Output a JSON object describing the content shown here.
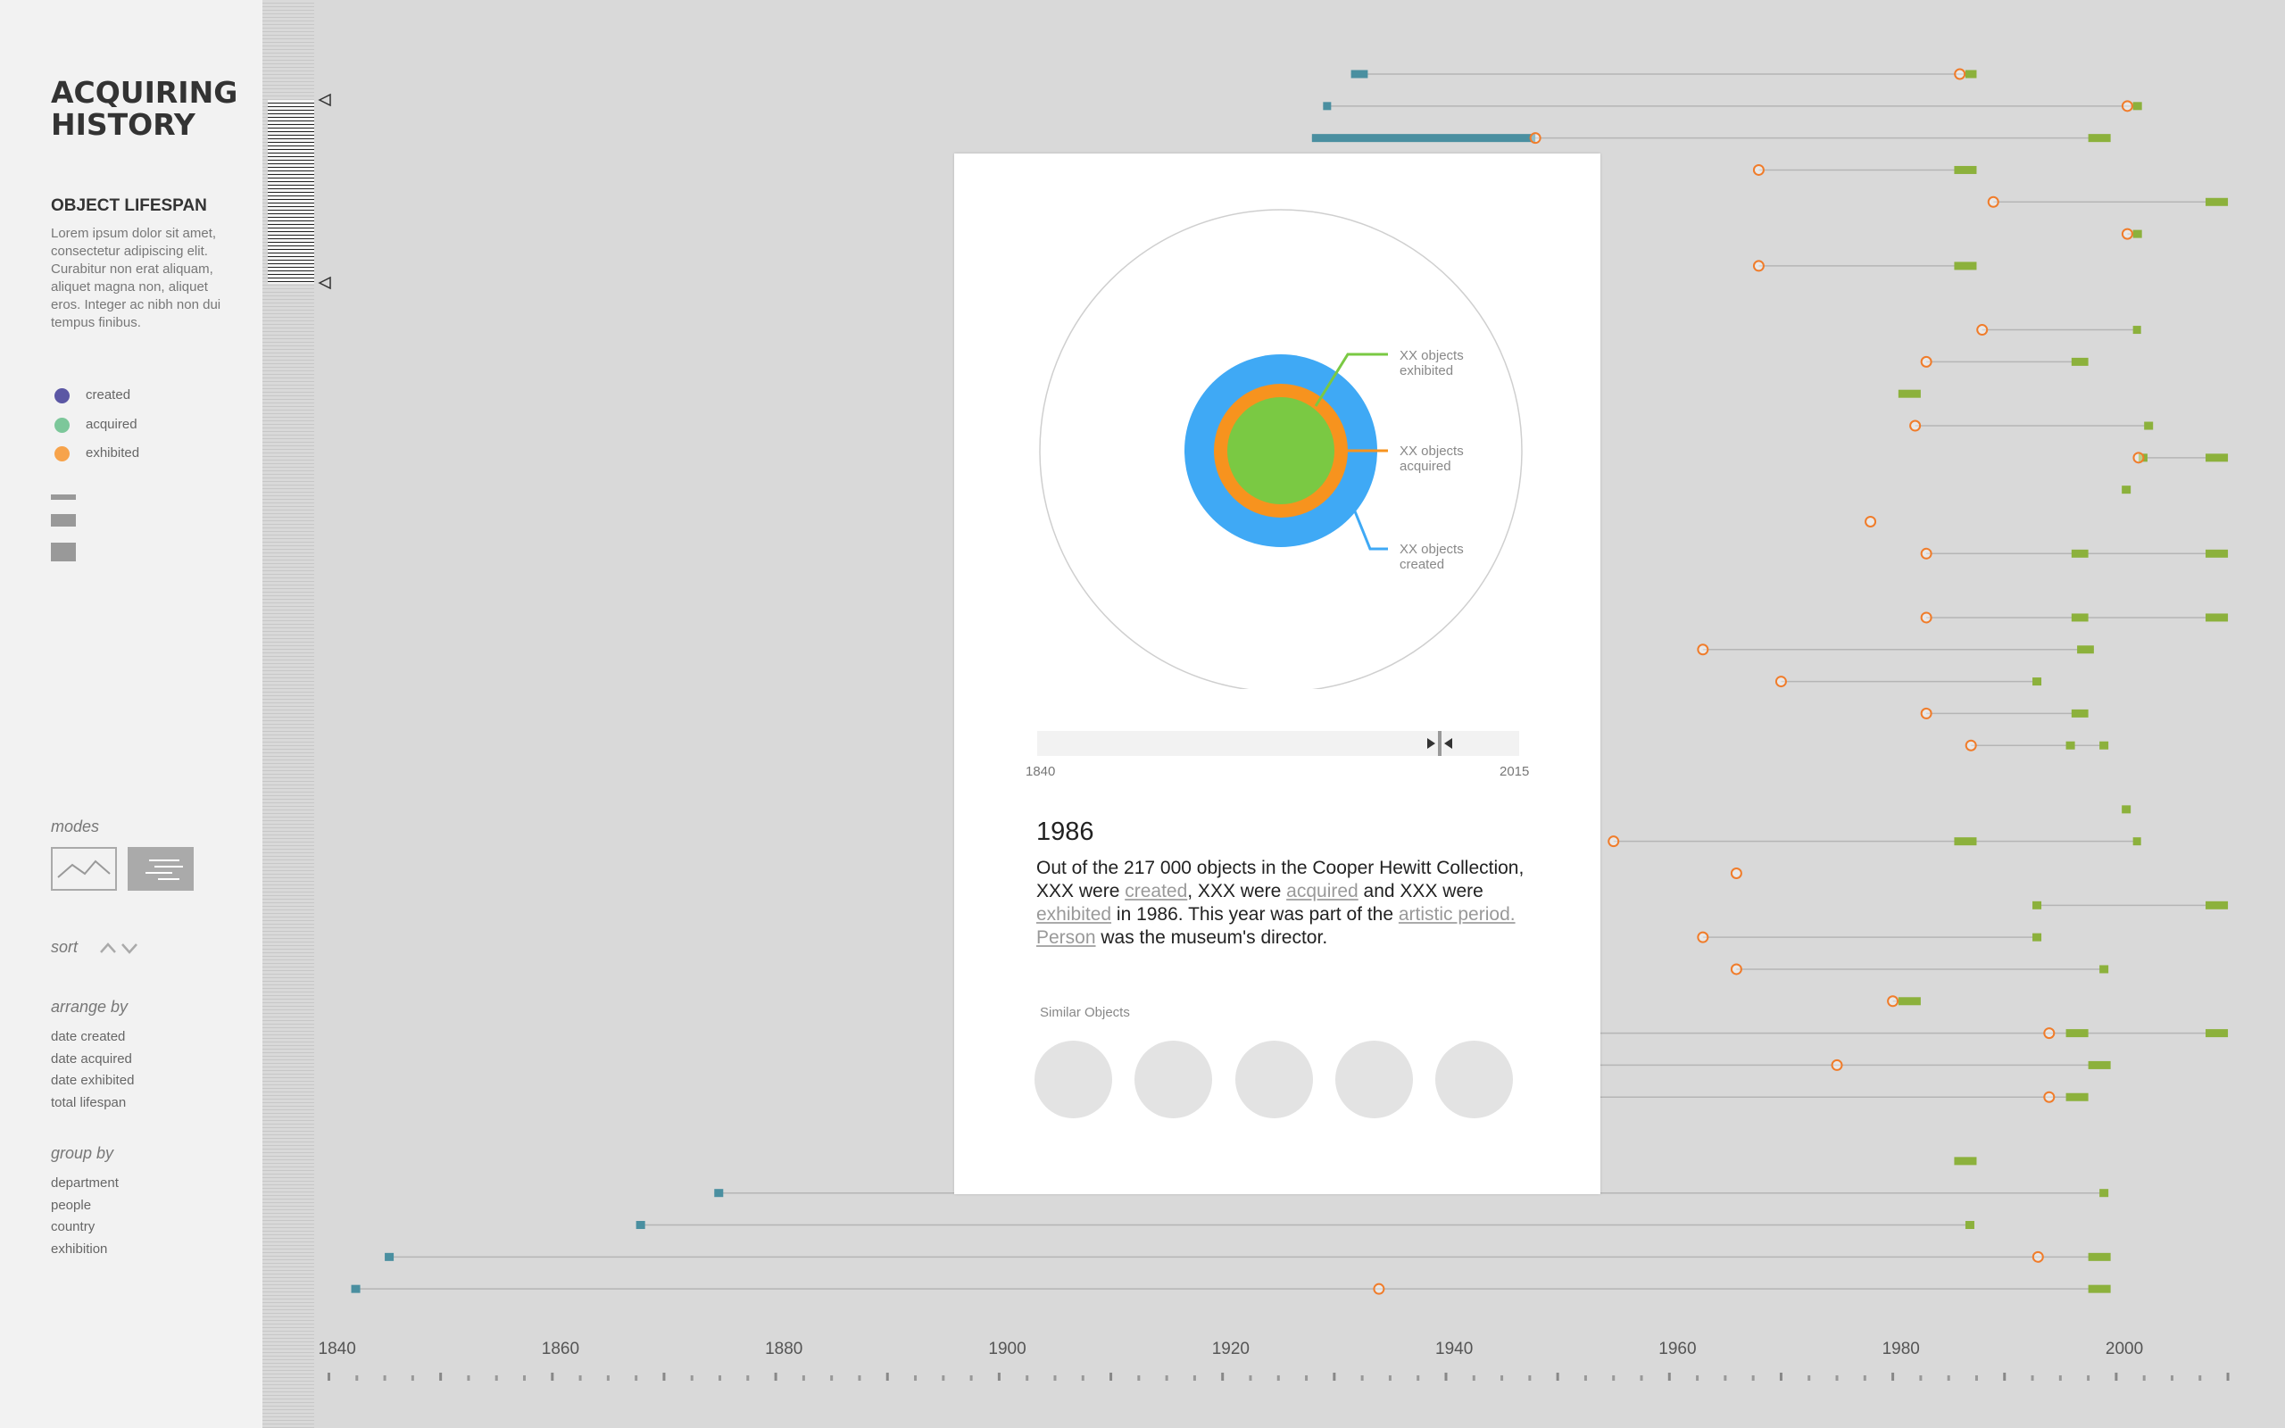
{
  "sidebar": {
    "title_line1": "ACQUIRING",
    "title_line2": "HISTORY",
    "section_title": "OBJECT LIFESPAN",
    "description": "Lorem ipsum dolor sit amet, consectetur adipiscing elit. Curabitur non erat aliquam, aliquet magna non, aliquet eros. Integer ac nibh non dui tempus finibus.",
    "legend": [
      {
        "label": "created",
        "color": "#5b57a4"
      },
      {
        "label": "acquired",
        "color": "#7cc79a"
      },
      {
        "label": "exhibited",
        "color": "#f7a34b"
      }
    ],
    "modes_label": "modes",
    "sort_label": "sort",
    "arrange_label": "arrange by",
    "arrange_options": [
      "date created",
      "date acquired",
      "date exhibited",
      "total lifespan"
    ],
    "group_label": "group by",
    "group_options": [
      "department",
      "people",
      "country",
      "exhibition"
    ]
  },
  "detail": {
    "ring_labels": {
      "exhibited": [
        "XX objects",
        "exhibited"
      ],
      "acquired": [
        "XX objects",
        "acquired"
      ],
      "created": [
        "XX objects",
        "created"
      ]
    },
    "colors": {
      "created": "#3fa9f5",
      "acquired": "#f7931e",
      "exhibited": "#7ac943"
    },
    "slider_start": "1840",
    "slider_end": "2015",
    "slider_value": 1986,
    "year": "1986",
    "text": {
      "p1": "Out of the 217 000 objects in the Cooper Hewitt Collection, XXX were ",
      "created": "created",
      "p2": ", XXX were ",
      "acquired": "acquired",
      "p3": " and XXX were ",
      "exhibited": "exhibited",
      "p4": " in 1986. This year was part of the ",
      "period": "artistic period.",
      "p5": " ",
      "person": "Person",
      "p6": " was the museum's director."
    },
    "similar_title": "Similar Objects",
    "similar_count": 5
  },
  "chart_data": {
    "type": "timeline",
    "x_ticks": [
      "1840",
      "1860",
      "1880",
      "1900",
      "1920",
      "1940",
      "1960",
      "1980",
      "2000"
    ],
    "xlim": [
      1838,
      2012
    ],
    "colors": {
      "created": "#4a8fa0",
      "acquired": "#f07c2a",
      "exhibited": "#8cb13c",
      "line": "#b5b5b5"
    },
    "rows": [
      {
        "created": [
          1931.5,
          1933
        ],
        "acquired": 1986,
        "exhibited": [
          [
            1986.5,
            1987.5
          ]
        ],
        "end": 1987
      },
      {
        "created": [
          1929,
          1929.5
        ],
        "acquired": 2001,
        "exhibited": [
          [
            2001.5,
            2002.3
          ]
        ],
        "end": 2002
      },
      {
        "created": [
          1928,
          1948
        ],
        "acquired": 1948,
        "exhibited": [
          [
            1997.5,
            1999.5
          ]
        ],
        "end": 1999
      },
      {
        "created": null,
        "acquired": 1968,
        "exhibited": [
          [
            1985.5,
            1987.5
          ]
        ],
        "end": 1987
      },
      {
        "created": null,
        "acquired": 1989,
        "exhibited": [
          [
            2008,
            2010
          ]
        ],
        "end": 2010
      },
      {
        "created": null,
        "acquired": 2001,
        "exhibited": [
          [
            2001.5,
            2002.3
          ]
        ],
        "end": 2002
      },
      {
        "created": null,
        "acquired": 1968,
        "exhibited": [
          [
            1985.5,
            1987.5
          ]
        ],
        "end": 1987
      },
      null,
      {
        "created": null,
        "acquired": 1988,
        "exhibited": [
          [
            2001.5,
            2002.2
          ]
        ],
        "end": 2002
      },
      {
        "created": null,
        "acquired": 1983,
        "exhibited": [
          [
            1996,
            1997.5
          ]
        ],
        "end": 1997
      },
      {
        "created": null,
        "exhibited": [
          [
            1980.5,
            1982.5
          ]
        ],
        "end": 1982
      },
      {
        "created": null,
        "acquired": 1982,
        "exhibited": [
          [
            2002.5,
            2003.3
          ]
        ],
        "end": 2003
      },
      {
        "created": null,
        "acquired": 2002,
        "exhibited": [
          [
            2002,
            2002.8
          ],
          [
            2008,
            2010
          ]
        ],
        "end": 2010
      },
      {
        "created": null,
        "exhibited": [
          [
            2000.5,
            2001.3
          ]
        ],
        "end": 2001
      },
      {
        "created": null,
        "acquired": 1978,
        "end": 1978
      },
      {
        "created": null,
        "acquired": 1983,
        "exhibited": [
          [
            1996,
            1997.5
          ],
          [
            2008,
            2010
          ]
        ],
        "end": 2010
      },
      null,
      {
        "created": null,
        "acquired": 1983,
        "exhibited": [
          [
            1996,
            1997.5
          ],
          [
            2008,
            2010
          ]
        ],
        "end": 2010
      },
      {
        "created": null,
        "acquired": 1963,
        "exhibited": [
          [
            1996.5,
            1998
          ]
        ],
        "end": 1998
      },
      {
        "created": null,
        "acquired": 1970,
        "exhibited": [
          [
            1992.5,
            1993.3
          ]
        ],
        "end": 1993
      },
      {
        "created": null,
        "acquired": 1983,
        "exhibited": [
          [
            1996,
            1997.5
          ]
        ],
        "end": 1997
      },
      {
        "created": null,
        "acquired": 1987,
        "exhibited": [
          [
            1995.5,
            1996.3
          ],
          [
            1998.5,
            1999.3
          ]
        ],
        "end": 1999
      },
      null,
      {
        "created": null,
        "exhibited": [
          [
            2000.5,
            2001.3
          ]
        ],
        "end": 2001
      },
      {
        "created": null,
        "acquired": 1955,
        "exhibited": [
          [
            1985.5,
            1987.5
          ],
          [
            2001.5,
            2002.2
          ]
        ],
        "end": 2002
      },
      {
        "created": null,
        "acquired": 1966,
        "end": 1966
      },
      {
        "created": null,
        "exhibited": [
          [
            1992.5,
            1993.3
          ],
          [
            2008,
            2010
          ]
        ],
        "end": 2010
      },
      {
        "created": null,
        "acquired": 1963,
        "exhibited": [
          [
            1992.5,
            1993.3
          ]
        ],
        "end": 1993
      },
      {
        "created": null,
        "acquired": 1966,
        "exhibited": [
          [
            1998.5,
            1999.3
          ]
        ],
        "end": 1999
      },
      {
        "created": null,
        "acquired": 1980,
        "exhibited": [
          [
            1980.5,
            1982.5
          ]
        ],
        "end": 1982
      },
      {
        "created": [
          1896.3,
          1897
        ],
        "acquired": 1994,
        "exhibited": [
          [
            1995.5,
            1997.5
          ],
          [
            2008,
            2010
          ]
        ],
        "end": 2010
      },
      {
        "created": [
          1896.3,
          1897
        ],
        "acquired": 1975,
        "exhibited": [
          [
            1997.5,
            1999.5
          ]
        ],
        "end": 1999
      },
      {
        "created": [
          1896.3,
          1897
        ],
        "acquired": 1994,
        "exhibited": [
          [
            1995.5,
            1997.5
          ]
        ],
        "end": 1997
      },
      {
        "created": [
          1896.3,
          1897
        ],
        "end": 1950
      },
      {
        "created": null,
        "exhibited": [
          [
            1985.5,
            1987.5
          ]
        ],
        "end": 1987
      },
      {
        "created": [
          1874.5,
          1875.3
        ],
        "exhibited": [
          [
            1998.5,
            1999.3
          ]
        ],
        "end": 1999
      },
      {
        "created": [
          1867.5,
          1868.3
        ],
        "exhibited": [
          [
            1986.5,
            1987.3
          ]
        ],
        "end": 1987
      },
      {
        "created": [
          1845,
          1845.8
        ],
        "acquired": 1993,
        "exhibited": [
          [
            1997.5,
            1999.5
          ]
        ],
        "end": 1999
      },
      {
        "created": [
          1842,
          1842.8
        ],
        "acquired": 1934,
        "exhibited": [
          [
            1997.5,
            1999.5
          ]
        ],
        "end": 1999
      }
    ]
  }
}
